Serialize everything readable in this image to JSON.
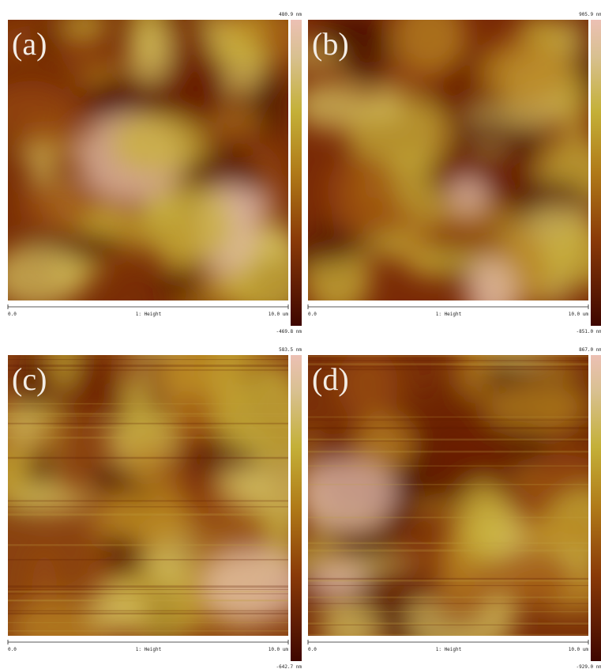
{
  "panels": [
    {
      "label": "(a)",
      "scale_max": "480.9 nm",
      "scale_min": "-469.8 nm",
      "x_start": "0.0",
      "channel": "1: Height",
      "x_end": "10.0 um"
    },
    {
      "label": "(b)",
      "scale_max": "905.9 nm",
      "scale_min": "-851.0 nm",
      "x_start": "0.0",
      "channel": "1: Height",
      "x_end": "10.0 um"
    },
    {
      "label": "(c)",
      "scale_max": "583.5 nm",
      "scale_min": "-642.7 nm",
      "x_start": "0.0",
      "channel": "1: Height",
      "x_end": "10.0 um"
    },
    {
      "label": "(d)",
      "scale_max": "867.0 nm",
      "scale_min": "-929.0 nm",
      "x_start": "0.0",
      "channel": "1: Height",
      "x_end": "10.0 um"
    }
  ]
}
